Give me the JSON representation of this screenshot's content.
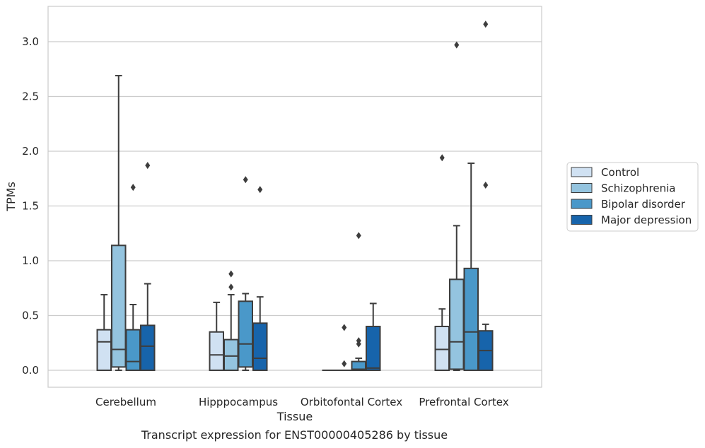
{
  "chart_data": {
    "type": "box",
    "title": "",
    "caption": "Transcript expression for ENST00000405286 by tissue",
    "xlabel": "Tissue",
    "ylabel": "TPMs",
    "ylim": [
      -0.15,
      3.3
    ],
    "yticks": [
      0.0,
      0.5,
      1.0,
      1.5,
      2.0,
      2.5,
      3.0
    ],
    "ytick_labels": [
      "0.0",
      "0.5",
      "1.0",
      "1.5",
      "2.0",
      "2.5",
      "3.0"
    ],
    "grid": "horizontal",
    "legend_position": "right",
    "categories": [
      "Cerebellum",
      "Hipppocampus",
      "Orbitofontal Cortex",
      "Prefrontal Cortex"
    ],
    "series": [
      {
        "name": "Control",
        "color": "#d0e1f2",
        "boxes": [
          {
            "whislo": 0.0,
            "q1": 0.0,
            "med": 0.26,
            "q3": 0.37,
            "whishi": 0.69,
            "fliers": []
          },
          {
            "whislo": 0.0,
            "q1": 0.0,
            "med": 0.14,
            "q3": 0.35,
            "whishi": 0.62,
            "fliers": []
          },
          {
            "whislo": 0.0,
            "q1": 0.0,
            "med": 0.0,
            "q3": 0.0,
            "whishi": 0.0,
            "fliers": []
          },
          {
            "whislo": 0.0,
            "q1": 0.0,
            "med": 0.19,
            "q3": 0.4,
            "whishi": 0.56,
            "fliers": [
              1.94
            ]
          }
        ]
      },
      {
        "name": "Schizophrenia",
        "color": "#94c4df",
        "boxes": [
          {
            "whislo": 0.0,
            "q1": 0.03,
            "med": 0.19,
            "q3": 1.14,
            "whishi": 2.69,
            "fliers": []
          },
          {
            "whislo": 0.0,
            "q1": 0.0,
            "med": 0.13,
            "q3": 0.28,
            "whishi": 0.69,
            "fliers": [
              0.76,
              0.88
            ]
          },
          {
            "whislo": 0.0,
            "q1": 0.0,
            "med": 0.0,
            "q3": 0.0,
            "whishi": 0.0,
            "fliers": [
              0.06,
              0.39
            ]
          },
          {
            "whislo": 0.0,
            "q1": 0.01,
            "med": 0.26,
            "q3": 0.83,
            "whishi": 1.32,
            "fliers": [
              2.97
            ]
          }
        ]
      },
      {
        "name": "Bipolar disorder",
        "color": "#4a98c9",
        "boxes": [
          {
            "whislo": 0.0,
            "q1": 0.0,
            "med": 0.08,
            "q3": 0.37,
            "whishi": 0.6,
            "fliers": [
              1.67
            ]
          },
          {
            "whislo": 0.0,
            "q1": 0.03,
            "med": 0.24,
            "q3": 0.63,
            "whishi": 0.7,
            "fliers": [
              1.74
            ]
          },
          {
            "whislo": 0.0,
            "q1": 0.0,
            "med": 0.01,
            "q3": 0.08,
            "whishi": 0.11,
            "fliers": [
              0.24,
              0.27,
              1.23
            ]
          },
          {
            "whislo": 0.0,
            "q1": 0.0,
            "med": 0.35,
            "q3": 0.93,
            "whishi": 1.89,
            "fliers": []
          }
        ]
      },
      {
        "name": "Major depression",
        "color": "#1764ab",
        "boxes": [
          {
            "whislo": 0.0,
            "q1": 0.0,
            "med": 0.22,
            "q3": 0.41,
            "whishi": 0.79,
            "fliers": [
              1.87
            ]
          },
          {
            "whislo": 0.0,
            "q1": 0.0,
            "med": 0.11,
            "q3": 0.43,
            "whishi": 0.67,
            "fliers": [
              1.65
            ]
          },
          {
            "whislo": 0.0,
            "q1": 0.0,
            "med": 0.02,
            "q3": 0.4,
            "whishi": 0.61,
            "fliers": []
          },
          {
            "whislo": 0.0,
            "q1": 0.0,
            "med": 0.18,
            "q3": 0.36,
            "whishi": 0.42,
            "fliers": [
              1.69,
              3.16
            ]
          }
        ]
      }
    ]
  }
}
